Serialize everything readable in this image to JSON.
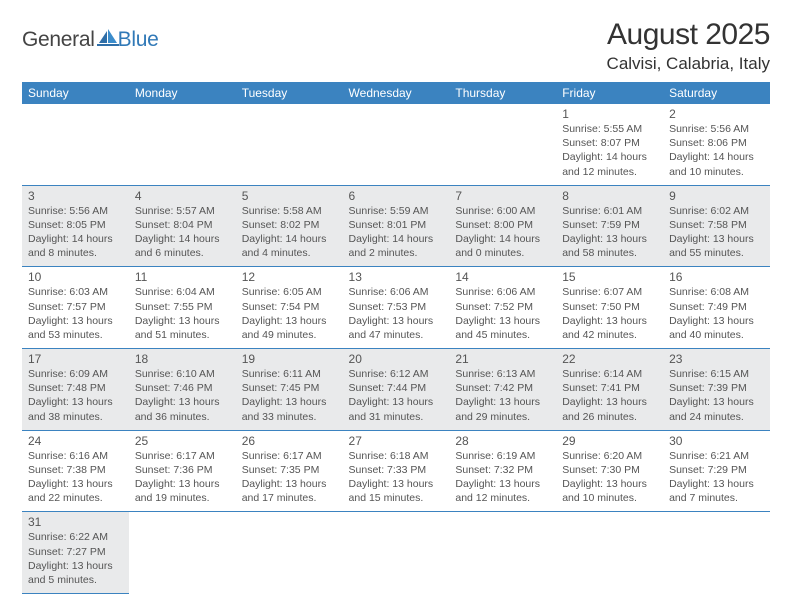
{
  "logo": {
    "general": "General",
    "blue": "Blue"
  },
  "title": "August 2025",
  "location": "Calvisi, Calabria, Italy",
  "colors": {
    "header_bg": "#3b83c0",
    "header_text": "#ffffff",
    "gray_cell": "#e9eaeb",
    "white_cell": "#ffffff",
    "rule": "#3b83c0",
    "text": "#555555",
    "logo_blue": "#3179b7"
  },
  "daynames": [
    "Sunday",
    "Monday",
    "Tuesday",
    "Wednesday",
    "Thursday",
    "Friday",
    "Saturday"
  ],
  "weeks": [
    [
      null,
      null,
      null,
      null,
      null,
      {
        "n": "1",
        "sr": "Sunrise: 5:55 AM",
        "ss": "Sunset: 8:07 PM",
        "dl": "Daylight: 14 hours and 12 minutes.",
        "shade": "white"
      },
      {
        "n": "2",
        "sr": "Sunrise: 5:56 AM",
        "ss": "Sunset: 8:06 PM",
        "dl": "Daylight: 14 hours and 10 minutes.",
        "shade": "white"
      }
    ],
    [
      {
        "n": "3",
        "sr": "Sunrise: 5:56 AM",
        "ss": "Sunset: 8:05 PM",
        "dl": "Daylight: 14 hours and 8 minutes.",
        "shade": "gray"
      },
      {
        "n": "4",
        "sr": "Sunrise: 5:57 AM",
        "ss": "Sunset: 8:04 PM",
        "dl": "Daylight: 14 hours and 6 minutes.",
        "shade": "gray"
      },
      {
        "n": "5",
        "sr": "Sunrise: 5:58 AM",
        "ss": "Sunset: 8:02 PM",
        "dl": "Daylight: 14 hours and 4 minutes.",
        "shade": "gray"
      },
      {
        "n": "6",
        "sr": "Sunrise: 5:59 AM",
        "ss": "Sunset: 8:01 PM",
        "dl": "Daylight: 14 hours and 2 minutes.",
        "shade": "gray"
      },
      {
        "n": "7",
        "sr": "Sunrise: 6:00 AM",
        "ss": "Sunset: 8:00 PM",
        "dl": "Daylight: 14 hours and 0 minutes.",
        "shade": "gray"
      },
      {
        "n": "8",
        "sr": "Sunrise: 6:01 AM",
        "ss": "Sunset: 7:59 PM",
        "dl": "Daylight: 13 hours and 58 minutes.",
        "shade": "gray"
      },
      {
        "n": "9",
        "sr": "Sunrise: 6:02 AM",
        "ss": "Sunset: 7:58 PM",
        "dl": "Daylight: 13 hours and 55 minutes.",
        "shade": "gray"
      }
    ],
    [
      {
        "n": "10",
        "sr": "Sunrise: 6:03 AM",
        "ss": "Sunset: 7:57 PM",
        "dl": "Daylight: 13 hours and 53 minutes.",
        "shade": "white"
      },
      {
        "n": "11",
        "sr": "Sunrise: 6:04 AM",
        "ss": "Sunset: 7:55 PM",
        "dl": "Daylight: 13 hours and 51 minutes.",
        "shade": "white"
      },
      {
        "n": "12",
        "sr": "Sunrise: 6:05 AM",
        "ss": "Sunset: 7:54 PM",
        "dl": "Daylight: 13 hours and 49 minutes.",
        "shade": "white"
      },
      {
        "n": "13",
        "sr": "Sunrise: 6:06 AM",
        "ss": "Sunset: 7:53 PM",
        "dl": "Daylight: 13 hours and 47 minutes.",
        "shade": "white"
      },
      {
        "n": "14",
        "sr": "Sunrise: 6:06 AM",
        "ss": "Sunset: 7:52 PM",
        "dl": "Daylight: 13 hours and 45 minutes.",
        "shade": "white"
      },
      {
        "n": "15",
        "sr": "Sunrise: 6:07 AM",
        "ss": "Sunset: 7:50 PM",
        "dl": "Daylight: 13 hours and 42 minutes.",
        "shade": "white"
      },
      {
        "n": "16",
        "sr": "Sunrise: 6:08 AM",
        "ss": "Sunset: 7:49 PM",
        "dl": "Daylight: 13 hours and 40 minutes.",
        "shade": "white"
      }
    ],
    [
      {
        "n": "17",
        "sr": "Sunrise: 6:09 AM",
        "ss": "Sunset: 7:48 PM",
        "dl": "Daylight: 13 hours and 38 minutes.",
        "shade": "gray"
      },
      {
        "n": "18",
        "sr": "Sunrise: 6:10 AM",
        "ss": "Sunset: 7:46 PM",
        "dl": "Daylight: 13 hours and 36 minutes.",
        "shade": "gray"
      },
      {
        "n": "19",
        "sr": "Sunrise: 6:11 AM",
        "ss": "Sunset: 7:45 PM",
        "dl": "Daylight: 13 hours and 33 minutes.",
        "shade": "gray"
      },
      {
        "n": "20",
        "sr": "Sunrise: 6:12 AM",
        "ss": "Sunset: 7:44 PM",
        "dl": "Daylight: 13 hours and 31 minutes.",
        "shade": "gray"
      },
      {
        "n": "21",
        "sr": "Sunrise: 6:13 AM",
        "ss": "Sunset: 7:42 PM",
        "dl": "Daylight: 13 hours and 29 minutes.",
        "shade": "gray"
      },
      {
        "n": "22",
        "sr": "Sunrise: 6:14 AM",
        "ss": "Sunset: 7:41 PM",
        "dl": "Daylight: 13 hours and 26 minutes.",
        "shade": "gray"
      },
      {
        "n": "23",
        "sr": "Sunrise: 6:15 AM",
        "ss": "Sunset: 7:39 PM",
        "dl": "Daylight: 13 hours and 24 minutes.",
        "shade": "gray"
      }
    ],
    [
      {
        "n": "24",
        "sr": "Sunrise: 6:16 AM",
        "ss": "Sunset: 7:38 PM",
        "dl": "Daylight: 13 hours and 22 minutes.",
        "shade": "white"
      },
      {
        "n": "25",
        "sr": "Sunrise: 6:17 AM",
        "ss": "Sunset: 7:36 PM",
        "dl": "Daylight: 13 hours and 19 minutes.",
        "shade": "white"
      },
      {
        "n": "26",
        "sr": "Sunrise: 6:17 AM",
        "ss": "Sunset: 7:35 PM",
        "dl": "Daylight: 13 hours and 17 minutes.",
        "shade": "white"
      },
      {
        "n": "27",
        "sr": "Sunrise: 6:18 AM",
        "ss": "Sunset: 7:33 PM",
        "dl": "Daylight: 13 hours and 15 minutes.",
        "shade": "white"
      },
      {
        "n": "28",
        "sr": "Sunrise: 6:19 AM",
        "ss": "Sunset: 7:32 PM",
        "dl": "Daylight: 13 hours and 12 minutes.",
        "shade": "white"
      },
      {
        "n": "29",
        "sr": "Sunrise: 6:20 AM",
        "ss": "Sunset: 7:30 PM",
        "dl": "Daylight: 13 hours and 10 minutes.",
        "shade": "white"
      },
      {
        "n": "30",
        "sr": "Sunrise: 6:21 AM",
        "ss": "Sunset: 7:29 PM",
        "dl": "Daylight: 13 hours and 7 minutes.",
        "shade": "white"
      }
    ],
    [
      {
        "n": "31",
        "sr": "Sunrise: 6:22 AM",
        "ss": "Sunset: 7:27 PM",
        "dl": "Daylight: 13 hours and 5 minutes.",
        "shade": "gray"
      },
      null,
      null,
      null,
      null,
      null,
      null
    ]
  ]
}
